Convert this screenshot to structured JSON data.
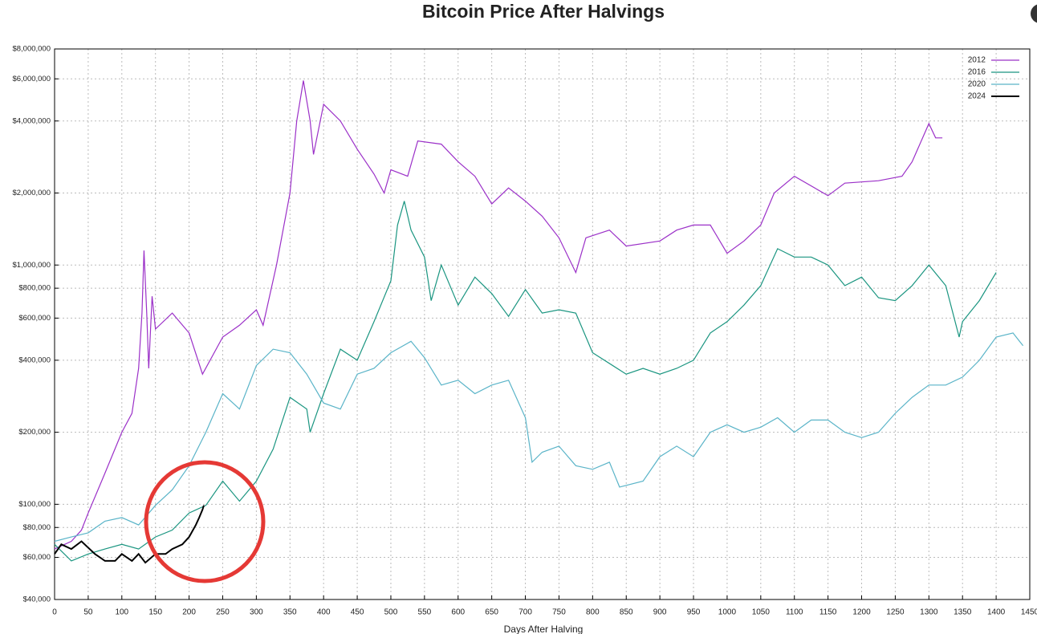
{
  "chart_data": {
    "type": "line",
    "title": "Bitcoin Price After Halvings",
    "xlabel": "Days After Halving",
    "log_y": true,
    "grid": true,
    "legend": "upper right",
    "xlim": [
      0,
      1450
    ],
    "xticks": [
      0,
      50,
      100,
      150,
      200,
      250,
      300,
      350,
      400,
      450,
      500,
      550,
      600,
      650,
      700,
      750,
      800,
      850,
      900,
      950,
      1000,
      1050,
      1100,
      1150,
      1200,
      1250,
      1300,
      1350,
      1400,
      1450
    ],
    "ylim": [
      40000,
      8000000
    ],
    "yticks": [
      {
        "value": 40000,
        "label": "$40,000"
      },
      {
        "value": 60000,
        "label": "$60,000"
      },
      {
        "value": 80000,
        "label": "$80,000"
      },
      {
        "value": 100000,
        "label": "$100,000"
      },
      {
        "value": 200000,
        "label": "$200,000"
      },
      {
        "value": 400000,
        "label": "$400,000"
      },
      {
        "value": 600000,
        "label": "$600,000"
      },
      {
        "value": 800000,
        "label": "$800,000"
      },
      {
        "value": 1000000,
        "label": "$1,000,000"
      },
      {
        "value": 2000000,
        "label": "$2,000,000"
      },
      {
        "value": 4000000,
        "label": "$4,000,000"
      },
      {
        "value": 6000000,
        "label": "$6,000,000"
      },
      {
        "value": 8000000,
        "label": "$8,000,000"
      }
    ],
    "series": [
      {
        "name": "2012",
        "color": "#9b30c8",
        "x": [
          0,
          25,
          40,
          50,
          75,
          100,
          115,
          125,
          130,
          133,
          137,
          140,
          145,
          150,
          175,
          200,
          220,
          250,
          275,
          300,
          310,
          330,
          350,
          360,
          370,
          380,
          385,
          400,
          425,
          450,
          475,
          490,
          500,
          525,
          540,
          575,
          600,
          625,
          650,
          675,
          700,
          725,
          750,
          775,
          790,
          825,
          850,
          900,
          925,
          950,
          975,
          1000,
          1025,
          1050,
          1070,
          1100,
          1150,
          1175,
          1225,
          1260,
          1275,
          1300,
          1310,
          1320
        ],
        "values": [
          65000,
          70000,
          78000,
          92000,
          135000,
          200000,
          240000,
          370000,
          630000,
          1150000,
          630000,
          370000,
          740000,
          540000,
          630000,
          520000,
          350000,
          500000,
          560000,
          650000,
          560000,
          1000000,
          2000000,
          4000000,
          5900000,
          4000000,
          2900000,
          4700000,
          4000000,
          3050000,
          2400000,
          2000000,
          2500000,
          2350000,
          3300000,
          3200000,
          2700000,
          2350000,
          1800000,
          2100000,
          1850000,
          1600000,
          1300000,
          930000,
          1300000,
          1400000,
          1200000,
          1260000,
          1400000,
          1470000,
          1470000,
          1120000,
          1260000,
          1470000,
          2000000,
          2350000,
          1950000,
          2200000,
          2250000,
          2350000,
          2700000,
          3900000,
          3400000,
          3400000
        ]
      },
      {
        "name": "2016",
        "color": "#1a9580",
        "x": [
          0,
          25,
          50,
          75,
          100,
          125,
          150,
          175,
          200,
          225,
          250,
          275,
          300,
          325,
          350,
          375,
          380,
          400,
          425,
          450,
          475,
          500,
          510,
          520,
          530,
          550,
          560,
          575,
          600,
          625,
          650,
          675,
          700,
          725,
          750,
          775,
          800,
          850,
          875,
          900,
          925,
          950,
          975,
          1000,
          1025,
          1050,
          1075,
          1100,
          1125,
          1150,
          1175,
          1200,
          1225,
          1250,
          1275,
          1300,
          1325,
          1345,
          1350,
          1375,
          1400
        ],
        "values": [
          68000,
          58000,
          62000,
          65000,
          68000,
          65000,
          73000,
          78000,
          92000,
          99000,
          125000,
          103000,
          125000,
          170000,
          280000,
          250000,
          200000,
          290000,
          445000,
          400000,
          580000,
          860000,
          1470000,
          1850000,
          1400000,
          1080000,
          710000,
          1000000,
          680000,
          890000,
          760000,
          610000,
          790000,
          630000,
          650000,
          630000,
          430000,
          350000,
          370000,
          350000,
          370000,
          400000,
          520000,
          580000,
          680000,
          820000,
          1170000,
          1080000,
          1080000,
          1000000,
          820000,
          890000,
          730000,
          710000,
          820000,
          1000000,
          820000,
          500000,
          580000,
          710000,
          930000
        ]
      },
      {
        "name": "2020",
        "color": "#5ab4c8",
        "x": [
          0,
          25,
          50,
          75,
          100,
          125,
          150,
          175,
          200,
          225,
          250,
          275,
          300,
          325,
          350,
          375,
          400,
          425,
          450,
          475,
          500,
          530,
          550,
          575,
          600,
          625,
          650,
          675,
          700,
          710,
          725,
          750,
          775,
          800,
          825,
          840,
          875,
          900,
          925,
          950,
          975,
          1000,
          1025,
          1050,
          1075,
          1100,
          1125,
          1150,
          1175,
          1200,
          1225,
          1250,
          1275,
          1300,
          1325,
          1350,
          1375,
          1400,
          1425,
          1440
        ],
        "values": [
          70000,
          73000,
          76000,
          85000,
          88000,
          82000,
          99000,
          115000,
          145000,
          200000,
          290000,
          250000,
          380000,
          445000,
          430000,
          350000,
          265000,
          250000,
          350000,
          370000,
          430000,
          480000,
          410000,
          315000,
          330000,
          290000,
          315000,
          330000,
          230000,
          150000,
          165000,
          175000,
          145000,
          140000,
          150000,
          118000,
          125000,
          158000,
          175000,
          158000,
          200000,
          215000,
          200000,
          210000,
          230000,
          200000,
          225000,
          225000,
          200000,
          190000,
          200000,
          240000,
          280000,
          315000,
          315000,
          340000,
          400000,
          500000,
          520000,
          460000
        ]
      },
      {
        "name": "2024",
        "color": "#000000",
        "x": [
          0,
          10,
          25,
          40,
          60,
          75,
          90,
          100,
          115,
          125,
          135,
          150,
          165,
          175,
          190,
          200,
          210,
          215,
          220,
          222
        ],
        "values": [
          62000,
          68000,
          65000,
          70000,
          62000,
          58000,
          58000,
          62000,
          58000,
          62000,
          57000,
          62000,
          62000,
          65000,
          68000,
          73000,
          82000,
          88000,
          95000,
          99000
        ]
      }
    ]
  }
}
